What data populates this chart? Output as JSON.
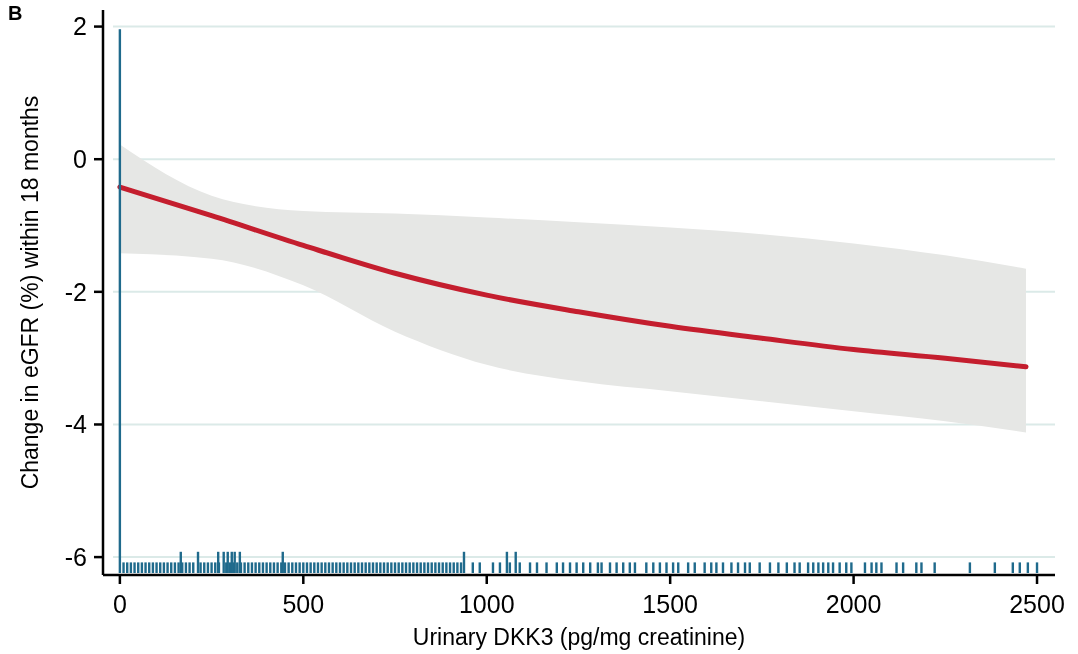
{
  "chart_data": {
    "type": "line",
    "xlabel": "Urinary DKK3 (pg/mg creatinine)",
    "ylabel": "Change in eGFR (%) within 18 months",
    "annotations": [
      "B"
    ],
    "xlim": [
      -46,
      2549
    ],
    "ylim": [
      -6.27,
      2.25
    ],
    "xticks": [
      0,
      500,
      1000,
      1500,
      2000,
      2500
    ],
    "yticks": [
      -6,
      -4,
      -2,
      0,
      2
    ],
    "grid": "y",
    "series": [
      {
        "type": "bar",
        "color": "#1f6a8c",
        "x": [
          0,
          10,
          20,
          30,
          40,
          50,
          60,
          70,
          80,
          90,
          100,
          110,
          120,
          130,
          140,
          150,
          160,
          166,
          170,
          180,
          190,
          200,
          213,
          220,
          230,
          240,
          250,
          260,
          268,
          270,
          283,
          290,
          294,
          300,
          305,
          310,
          313,
          320,
          327,
          330,
          340,
          350,
          360,
          370,
          380,
          390,
          400,
          410,
          420,
          430,
          440,
          444,
          450,
          460,
          470,
          480,
          490,
          500,
          510,
          520,
          530,
          540,
          550,
          560,
          570,
          580,
          590,
          600,
          610,
          620,
          630,
          640,
          650,
          660,
          670,
          680,
          690,
          700,
          710,
          720,
          730,
          740,
          750,
          760,
          770,
          780,
          790,
          800,
          810,
          820,
          830,
          840,
          850,
          860,
          870,
          880,
          890,
          900,
          910,
          920,
          930,
          938,
          962,
          981,
          1017,
          1036,
          1055,
          1063,
          1079,
          1090,
          1118,
          1137,
          1163,
          1191,
          1208,
          1227,
          1245,
          1263,
          1282,
          1303,
          1313,
          1336,
          1354,
          1372,
          1390,
          1404,
          1435,
          1454,
          1472,
          1490,
          1508,
          1522,
          1549,
          1567,
          1594,
          1612,
          1626,
          1644,
          1667,
          1685,
          1704,
          1717,
          1744,
          1772,
          1795,
          1818,
          1839,
          1853,
          1876,
          1890,
          1904,
          1917,
          1931,
          1944,
          1962,
          1980,
          1994,
          2031,
          2049,
          2062,
          2076,
          2117,
          2135,
          2171,
          2185,
          2221,
          2317,
          2385,
          2434,
          2453,
          2475,
          2500
        ],
        "values": [
          8.2,
          0.16,
          0.16,
          0.16,
          0.16,
          0.16,
          0.16,
          0.16,
          0.16,
          0.16,
          0.16,
          0.16,
          0.16,
          0.16,
          0.16,
          0.16,
          0.16,
          0.32,
          0.16,
          0.16,
          0.16,
          0.16,
          0.32,
          0.16,
          0.16,
          0.16,
          0.16,
          0.16,
          0.32,
          0.16,
          0.32,
          0.16,
          0.32,
          0.16,
          0.32,
          0.16,
          0.32,
          0.16,
          0.32,
          0.16,
          0.16,
          0.16,
          0.16,
          0.16,
          0.16,
          0.16,
          0.16,
          0.16,
          0.16,
          0.16,
          0.16,
          0.32,
          0.16,
          0.16,
          0.16,
          0.16,
          0.16,
          0.16,
          0.16,
          0.16,
          0.16,
          0.16,
          0.16,
          0.16,
          0.16,
          0.16,
          0.16,
          0.16,
          0.16,
          0.16,
          0.16,
          0.16,
          0.16,
          0.16,
          0.16,
          0.16,
          0.16,
          0.16,
          0.16,
          0.16,
          0.16,
          0.16,
          0.16,
          0.16,
          0.16,
          0.16,
          0.16,
          0.16,
          0.16,
          0.16,
          0.16,
          0.16,
          0.16,
          0.16,
          0.16,
          0.16,
          0.16,
          0.16,
          0.16,
          0.16,
          0.16,
          0.32,
          0.16,
          0.16,
          0.16,
          0.16,
          0.32,
          0.16,
          0.32,
          0.16,
          0.16,
          0.16,
          0.16,
          0.16,
          0.16,
          0.16,
          0.16,
          0.16,
          0.16,
          0.16,
          0.16,
          0.16,
          0.16,
          0.16,
          0.16,
          0.16,
          0.16,
          0.16,
          0.16,
          0.16,
          0.16,
          0.16,
          0.16,
          0.16,
          0.16,
          0.16,
          0.16,
          0.16,
          0.16,
          0.16,
          0.16,
          0.16,
          0.16,
          0.16,
          0.16,
          0.16,
          0.16,
          0.16,
          0.16,
          0.16,
          0.16,
          0.16,
          0.16,
          0.16,
          0.16,
          0.16,
          0.16,
          0.16,
          0.16,
          0.16,
          0.16,
          0.16,
          0.16,
          0.16,
          0.16,
          0.16,
          0.16,
          0.16,
          0.16,
          0.16,
          0.16,
          0.16
        ],
        "base": [
          -6.24,
          -6.24,
          -6.24,
          -6.24,
          -6.24,
          -6.24,
          -6.24,
          -6.24,
          -6.24,
          -6.24,
          -6.24,
          -6.24,
          -6.24,
          -6.24,
          -6.24,
          -6.24,
          -6.24,
          -6.24,
          -6.24,
          -6.24,
          -6.24,
          -6.24,
          -6.24,
          -6.24,
          -6.24,
          -6.24,
          -6.24,
          -6.24,
          -6.24,
          -6.24,
          -6.24,
          -6.24,
          -6.24,
          -6.24,
          -6.24,
          -6.24,
          -6.24,
          -6.24,
          -6.24,
          -6.24,
          -6.24,
          -6.24,
          -6.24,
          -6.24,
          -6.24,
          -6.24,
          -6.24,
          -6.24,
          -6.24,
          -6.24,
          -6.24,
          -6.24,
          -6.24,
          -6.24,
          -6.24,
          -6.24,
          -6.24,
          -6.24,
          -6.24,
          -6.24,
          -6.24,
          -6.24,
          -6.24,
          -6.24,
          -6.24,
          -6.24,
          -6.24,
          -6.24,
          -6.24,
          -6.24,
          -6.24,
          -6.24,
          -6.24,
          -6.24,
          -6.24,
          -6.24,
          -6.24,
          -6.24,
          -6.24,
          -6.24,
          -6.24,
          -6.24,
          -6.24,
          -6.24,
          -6.24,
          -6.24,
          -6.24,
          -6.24,
          -6.24,
          -6.24,
          -6.24,
          -6.24,
          -6.24,
          -6.24,
          -6.24,
          -6.24,
          -6.24,
          -6.24,
          -6.24,
          -6.24,
          -6.24,
          -6.24,
          -6.24,
          -6.24,
          -6.24,
          -6.24,
          -6.24,
          -6.24,
          -6.24,
          -6.24,
          -6.24,
          -6.24,
          -6.24,
          -6.24,
          -6.24,
          -6.24,
          -6.24,
          -6.24,
          -6.24,
          -6.24,
          -6.24,
          -6.24,
          -6.24,
          -6.24,
          -6.24,
          -6.24,
          -6.24,
          -6.24,
          -6.24,
          -6.24,
          -6.24,
          -6.24,
          -6.24,
          -6.24,
          -6.24,
          -6.24,
          -6.24,
          -6.24,
          -6.24,
          -6.24,
          -6.24,
          -6.24,
          -6.24,
          -6.24,
          -6.24,
          -6.24,
          -6.24,
          -6.24,
          -6.24,
          -6.24,
          -6.24,
          -6.24,
          -6.24,
          -6.24,
          -6.24,
          -6.24,
          -6.24,
          -6.24,
          -6.24,
          -6.24,
          -6.24,
          -6.24,
          -6.24,
          -6.24,
          -6.24,
          -6.24,
          -6.24,
          -6.24,
          -6.24,
          -6.24,
          -6.24,
          -6.24
        ]
      },
      {
        "color": "#c41e2e",
        "x": [
          0,
          250,
          500,
          750,
          1000,
          1250,
          1500,
          1750,
          2000,
          2250,
          2470
        ],
        "values": [
          -0.42,
          -0.85,
          -1.3,
          -1.72,
          -2.05,
          -2.3,
          -2.52,
          -2.7,
          -2.87,
          -3.0,
          -3.13
        ],
        "upper": [
          0.22,
          -0.55,
          -0.78,
          -0.82,
          -0.88,
          -0.95,
          -1.03,
          -1.13,
          -1.27,
          -1.45,
          -1.65
        ],
        "lower": [
          -1.42,
          -1.5,
          -1.9,
          -2.6,
          -3.1,
          -3.35,
          -3.5,
          -3.65,
          -3.8,
          -3.95,
          -4.12
        ]
      }
    ]
  }
}
